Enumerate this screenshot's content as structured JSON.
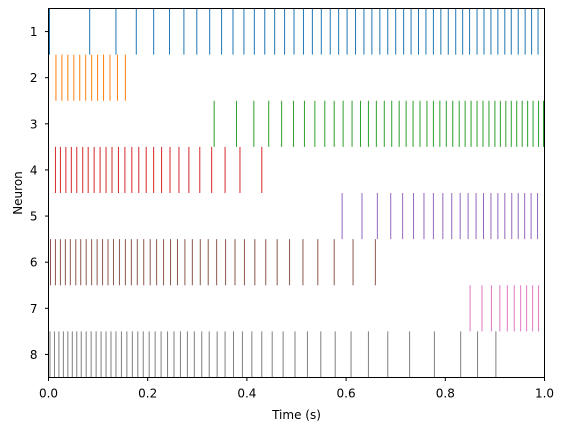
{
  "chart_data": {
    "type": "eventplot",
    "xlabel": "Time (s)",
    "ylabel": "Neuron",
    "xlim": [
      0.0,
      1.0
    ],
    "xticks": [
      "0.0",
      "0.2",
      "0.4",
      "0.6",
      "0.8",
      "1.0"
    ],
    "categories": [
      "1",
      "2",
      "3",
      "4",
      "5",
      "6",
      "7",
      "8"
    ],
    "grid": false,
    "series": [
      {
        "color": "#1f77b4",
        "spikes": [
          0.002,
          0.083,
          0.136,
          0.177,
          0.212,
          0.244,
          0.273,
          0.299,
          0.325,
          0.349,
          0.372,
          0.394,
          0.415,
          0.436,
          0.456,
          0.476,
          0.495,
          0.514,
          0.532,
          0.55,
          0.568,
          0.585,
          0.602,
          0.619,
          0.636,
          0.652,
          0.668,
          0.684,
          0.7,
          0.716,
          0.731,
          0.746,
          0.761,
          0.776,
          0.791,
          0.806,
          0.821,
          0.835,
          0.849,
          0.864,
          0.878,
          0.892,
          0.906,
          0.92,
          0.933,
          0.947,
          0.961,
          0.974,
          0.987
        ]
      },
      {
        "color": "#ff7f0e",
        "spikes": [
          0.015,
          0.027,
          0.039,
          0.051,
          0.063,
          0.075,
          0.087,
          0.099,
          0.111,
          0.124,
          0.139,
          0.155
        ]
      },
      {
        "color": "#2ca02c",
        "spikes": [
          0.334,
          0.379,
          0.414,
          0.444,
          0.47,
          0.494,
          0.516,
          0.537,
          0.557,
          0.576,
          0.594,
          0.612,
          0.629,
          0.645,
          0.661,
          0.677,
          0.692,
          0.707,
          0.721,
          0.735,
          0.749,
          0.763,
          0.776,
          0.789,
          0.802,
          0.815,
          0.828,
          0.84,
          0.852,
          0.864,
          0.876,
          0.888,
          0.9,
          0.911,
          0.922,
          0.933,
          0.944,
          0.955,
          0.966,
          0.977,
          0.988,
          0.998
        ]
      },
      {
        "color": "#d62728",
        "spikes": [
          0.014,
          0.024,
          0.035,
          0.046,
          0.057,
          0.069,
          0.08,
          0.092,
          0.104,
          0.116,
          0.128,
          0.141,
          0.154,
          0.168,
          0.182,
          0.197,
          0.212,
          0.228,
          0.245,
          0.263,
          0.283,
          0.305,
          0.329,
          0.356,
          0.386,
          0.43
        ]
      },
      {
        "color": "#9467bd",
        "spikes": [
          0.592,
          0.632,
          0.663,
          0.69,
          0.714,
          0.736,
          0.757,
          0.776,
          0.795,
          0.813,
          0.83,
          0.846,
          0.862,
          0.877,
          0.892,
          0.906,
          0.92,
          0.934,
          0.947,
          0.96,
          0.973,
          0.986
        ]
      },
      {
        "color": "#8c564b",
        "spikes": [
          0.004,
          0.014,
          0.024,
          0.034,
          0.044,
          0.055,
          0.065,
          0.076,
          0.087,
          0.098,
          0.109,
          0.12,
          0.131,
          0.143,
          0.155,
          0.167,
          0.179,
          0.192,
          0.205,
          0.218,
          0.232,
          0.246,
          0.26,
          0.275,
          0.29,
          0.306,
          0.322,
          0.339,
          0.357,
          0.376,
          0.395,
          0.416,
          0.438,
          0.461,
          0.486,
          0.513,
          0.543,
          0.576,
          0.614,
          0.659
        ]
      },
      {
        "color": "#e377c2",
        "spikes": [
          0.85,
          0.874,
          0.893,
          0.91,
          0.925,
          0.939,
          0.952,
          0.964,
          0.976,
          0.988
        ]
      },
      {
        "color": "#7f7f7f",
        "spikes": [
          0.003,
          0.012,
          0.021,
          0.03,
          0.039,
          0.048,
          0.057,
          0.066,
          0.076,
          0.086,
          0.096,
          0.106,
          0.116,
          0.126,
          0.136,
          0.147,
          0.158,
          0.169,
          0.18,
          0.191,
          0.203,
          0.215,
          0.227,
          0.24,
          0.253,
          0.266,
          0.28,
          0.294,
          0.309,
          0.324,
          0.34,
          0.356,
          0.373,
          0.391,
          0.41,
          0.43,
          0.451,
          0.473,
          0.497,
          0.522,
          0.549,
          0.578,
          0.61,
          0.645,
          0.684,
          0.728,
          0.778,
          0.831,
          0.865,
          0.902
        ]
      }
    ]
  }
}
